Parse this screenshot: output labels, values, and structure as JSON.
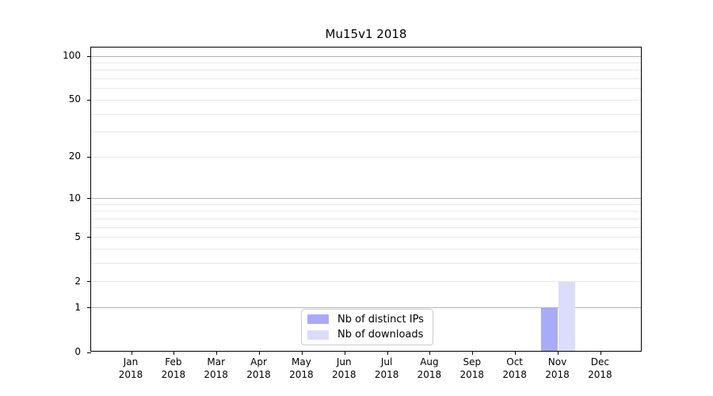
{
  "chart_data": {
    "type": "bar",
    "title": "Mu15v1 2018",
    "categories": [
      "Jan 2018",
      "Feb 2018",
      "Mar 2018",
      "Apr 2018",
      "May 2018",
      "Jun 2018",
      "Jul 2018",
      "Aug 2018",
      "Sep 2018",
      "Oct 2018",
      "Nov 2018",
      "Dec 2018"
    ],
    "series": [
      {
        "name": "Nb of distinct IPs",
        "color": "#a9abf8",
        "values": [
          0,
          0,
          0,
          0,
          0,
          0,
          0,
          0,
          0,
          0,
          1,
          0
        ]
      },
      {
        "name": "Nb of downloads",
        "color": "#dcddfb",
        "values": [
          0,
          0,
          0,
          0,
          0,
          0,
          0,
          0,
          0,
          0,
          2,
          0
        ]
      }
    ],
    "xlabel": "",
    "ylabel": "",
    "y_scale": "log1p",
    "y_ticks": [
      0,
      1,
      2,
      5,
      10,
      20,
      50,
      100
    ],
    "y_major_gridlines": [
      1,
      10,
      100
    ],
    "y_minor_gridlines": [
      2,
      3,
      4,
      5,
      6,
      7,
      8,
      9,
      20,
      30,
      40,
      50,
      60,
      70,
      80,
      90
    ],
    "ylim": [
      0,
      115
    ],
    "grid": "horizontal",
    "grid_color_major": "#b3b3b3",
    "grid_color_minor": "#e8e8e8",
    "axis_color": "#000000",
    "legend_position": "lower center"
  }
}
